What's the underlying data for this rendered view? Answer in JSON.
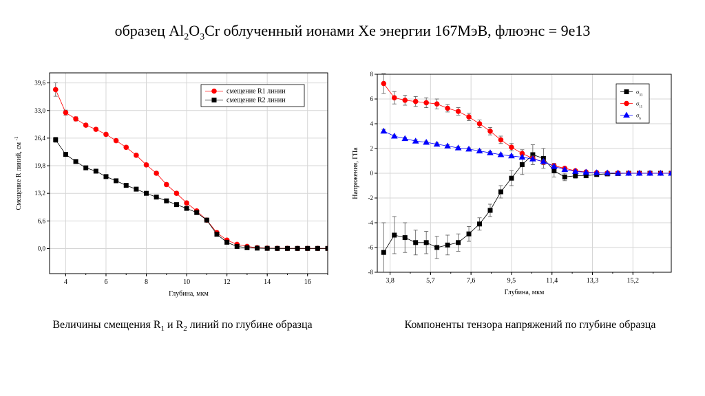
{
  "header": {
    "title_pre": "образец Al",
    "title_sub1": "2",
    "title_mid1": "O",
    "title_sub2": "3",
    "title_post": "Cr облученный ионами Xe энергии 167МэВ, флюэнс = 9e13"
  },
  "captions": {
    "left_pre": "Величины смещения R",
    "left_sub1": "1",
    "left_mid": " и R",
    "left_sub2": "2",
    "left_post": " линий по глубине образца",
    "right": "Компоненты тензора напряжений по глубине образца"
  },
  "colors": {
    "red": "#ff0000",
    "black": "#000000",
    "blue": "#0000ff",
    "grid": "#d6d6d6"
  },
  "chart_data": [
    {
      "type": "line",
      "xlabel": "Глубина, мкм",
      "ylabel": "Смещение R линий, см",
      "ylabel_sup": "-1",
      "xlim": [
        3.2,
        17
      ],
      "ylim": [
        -6,
        42
      ],
      "xticks": [
        4,
        6,
        8,
        10,
        12,
        14,
        16
      ],
      "yticks": [
        0.0,
        6.6,
        13.2,
        19.8,
        26.4,
        33.0,
        39.6
      ],
      "ytick_labels": [
        "0,0",
        "6,6",
        "13,2",
        "19,8",
        "26,4",
        "33,0",
        "39,6"
      ],
      "grid": true,
      "legend_position": "top-right",
      "series": [
        {
          "name": "смещение R1 линии",
          "color": "#ff0000",
          "marker": "circle",
          "x": [
            3.5,
            4,
            4.5,
            5,
            5.5,
            6,
            6.5,
            7,
            7.5,
            8,
            8.5,
            9,
            9.5,
            10,
            10.5,
            11,
            11.5,
            12,
            12.5,
            13,
            13.5,
            14,
            14.5,
            15,
            15.5,
            16,
            16.5,
            17
          ],
          "y": [
            38.0,
            32.5,
            31.0,
            29.5,
            28.5,
            27.3,
            25.8,
            24.2,
            22.3,
            20.0,
            18.0,
            15.3,
            13.2,
            10.9,
            9.0,
            6.8,
            3.8,
            2.0,
            1.0,
            0.5,
            0.2,
            0.1,
            0.05,
            0.05,
            0.03,
            0.03,
            0.03,
            0.03
          ],
          "err": [
            1.6,
            0.6,
            0.5,
            0.4,
            0.4,
            0.4,
            0.4,
            0.4,
            0.4,
            0.4,
            0.4,
            0.4,
            0.4,
            0.4,
            0.4,
            0.4,
            0.4,
            0.3,
            0.2,
            0.2,
            0.1,
            0.1,
            0.1,
            0.1,
            0.1,
            0.1,
            0.1,
            0.1
          ]
        },
        {
          "name": "смещение R2 линии",
          "color": "#000000",
          "marker": "square",
          "x": [
            3.5,
            4,
            4.5,
            5,
            5.5,
            6,
            6.5,
            7,
            7.5,
            8,
            8.5,
            9,
            9.5,
            10,
            10.5,
            11,
            11.5,
            12,
            12.5,
            13,
            13.5,
            14,
            14.5,
            15,
            15.5,
            16,
            16.5,
            17
          ],
          "y": [
            26.0,
            22.5,
            20.8,
            19.3,
            18.5,
            17.2,
            16.2,
            15.1,
            14.2,
            13.2,
            12.3,
            11.4,
            10.5,
            9.6,
            8.6,
            6.8,
            3.4,
            1.5,
            0.5,
            0.2,
            0.1,
            0.05,
            0.03,
            0.03,
            0.03,
            0.03,
            0.03,
            0.03
          ],
          "err": [
            0.6,
            0.4,
            0.4,
            0.3,
            0.3,
            0.3,
            0.3,
            0.3,
            0.3,
            0.3,
            0.3,
            0.3,
            0.3,
            0.3,
            0.3,
            0.3,
            0.3,
            0.2,
            0.1,
            0.1,
            0.1,
            0.1,
            0.1,
            0.1,
            0.1,
            0.1,
            0.1,
            0.1
          ]
        }
      ]
    },
    {
      "type": "line",
      "xlabel": "Глубина, мкм",
      "ylabel": "Напряжения, ГПа",
      "xlim": [
        3.2,
        17
      ],
      "ylim": [
        -8,
        8
      ],
      "xticks": [
        3.8,
        5.7,
        7.6,
        9.5,
        11.4,
        13.3,
        15.2
      ],
      "xtick_labels": [
        "3,8",
        "5,7",
        "7,6",
        "9,5",
        "11,4",
        "13,3",
        "15,2"
      ],
      "yticks": [
        -8,
        -6,
        -4,
        -2,
        0,
        2,
        4,
        6,
        8
      ],
      "grid": true,
      "legend_position": "top-right",
      "series": [
        {
          "name": "σ",
          "name_sub": "33",
          "color": "#000000",
          "marker": "square",
          "x": [
            3.5,
            4,
            4.5,
            5,
            5.5,
            6,
            6.5,
            7,
            7.5,
            8,
            8.5,
            9,
            9.5,
            10,
            10.5,
            11,
            11.5,
            12,
            12.5,
            13,
            13.5,
            14,
            14.5,
            15,
            15.5,
            16,
            16.5,
            17
          ],
          "y": [
            -6.4,
            -5.0,
            -5.2,
            -5.6,
            -5.6,
            -6.0,
            -5.8,
            -5.6,
            -4.9,
            -4.1,
            -3.0,
            -1.5,
            -0.4,
            0.7,
            1.5,
            1.2,
            0.2,
            -0.3,
            -0.2,
            -0.2,
            -0.1,
            -0.05,
            -0.02,
            0,
            0,
            0,
            0,
            0
          ],
          "err": [
            2.4,
            1.5,
            1.2,
            1.0,
            0.9,
            0.9,
            0.8,
            0.7,
            0.6,
            0.5,
            0.5,
            0.5,
            0.6,
            0.8,
            0.8,
            0.8,
            0.5,
            0.3,
            0.2,
            0.1,
            0.1,
            0.1,
            0.05,
            0.05,
            0.05,
            0.05,
            0.05,
            0.05
          ]
        },
        {
          "name": "σ",
          "name_sub": "11",
          "color": "#ff0000",
          "marker": "circle",
          "x": [
            3.5,
            4,
            4.5,
            5,
            5.5,
            6,
            6.5,
            7,
            7.5,
            8,
            8.5,
            9,
            9.5,
            10,
            10.5,
            11,
            11.5,
            12,
            12.5,
            13,
            13.5,
            14,
            14.5,
            15,
            15.5,
            16,
            16.5,
            17
          ],
          "y": [
            7.25,
            6.1,
            5.9,
            5.8,
            5.7,
            5.6,
            5.25,
            5.0,
            4.55,
            4.0,
            3.4,
            2.7,
            2.1,
            1.6,
            1.2,
            0.9,
            0.6,
            0.4,
            0.2,
            0.1,
            0.05,
            0.02,
            0.01,
            0,
            0,
            0,
            0,
            0
          ],
          "err": [
            0.8,
            0.5,
            0.4,
            0.4,
            0.4,
            0.4,
            0.3,
            0.3,
            0.3,
            0.3,
            0.3,
            0.3,
            0.3,
            0.3,
            0.2,
            0.2,
            0.2,
            0.1,
            0.1,
            0.1,
            0.05,
            0.05,
            0.05,
            0.05,
            0.05,
            0.05,
            0.05,
            0.05
          ]
        },
        {
          "name": "σ",
          "name_sub": "h",
          "color": "#0000ff",
          "marker": "triangle",
          "x": [
            3.5,
            4,
            4.5,
            5,
            5.5,
            6,
            6.5,
            7,
            7.5,
            8,
            8.5,
            9,
            9.5,
            10,
            10.5,
            11,
            11.5,
            12,
            12.5,
            13,
            13.5,
            14,
            14.5,
            15,
            15.5,
            16,
            16.5,
            17
          ],
          "y": [
            3.4,
            3.0,
            2.8,
            2.6,
            2.5,
            2.35,
            2.2,
            2.05,
            1.95,
            1.8,
            1.65,
            1.5,
            1.4,
            1.3,
            1.15,
            0.95,
            0.55,
            0.3,
            0.15,
            0.08,
            0.04,
            0.02,
            0.01,
            0,
            0,
            0,
            0,
            0
          ],
          "err": [
            0.15,
            0.1,
            0.1,
            0.1,
            0.1,
            0.1,
            0.1,
            0.1,
            0.1,
            0.1,
            0.1,
            0.1,
            0.1,
            0.1,
            0.1,
            0.1,
            0.1,
            0.05,
            0.05,
            0.05,
            0.05,
            0.05,
            0.05,
            0.05,
            0.05,
            0.05,
            0.05,
            0.05
          ]
        }
      ]
    }
  ]
}
